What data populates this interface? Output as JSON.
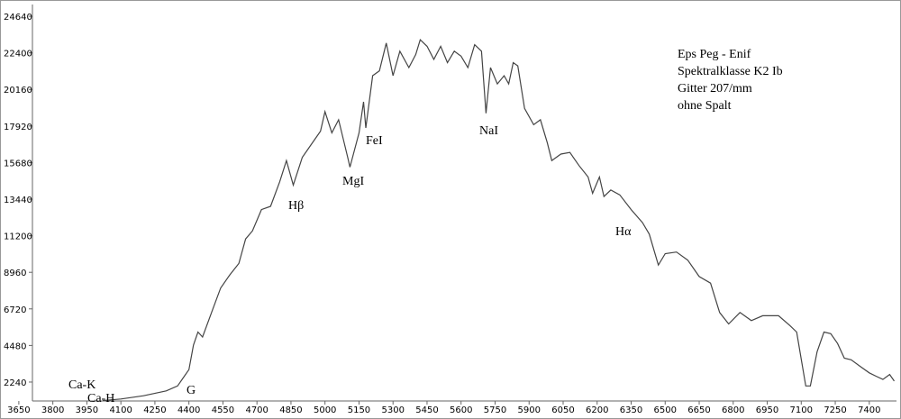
{
  "chart_data": {
    "type": "line",
    "x": [
      4020,
      4100,
      4200,
      4300,
      4350,
      4380,
      4400,
      4420,
      4440,
      4460,
      4500,
      4540,
      4580,
      4620,
      4650,
      4680,
      4720,
      4760,
      4800,
      4830,
      4860,
      4900,
      4950,
      4980,
      5000,
      5030,
      5060,
      5100,
      5110,
      5150,
      5170,
      5180,
      5210,
      5240,
      5270,
      5300,
      5330,
      5370,
      5400,
      5420,
      5450,
      5480,
      5510,
      5540,
      5570,
      5600,
      5630,
      5660,
      5690,
      5710,
      5730,
      5760,
      5790,
      5810,
      5830,
      5850,
      5880,
      5920,
      5950,
      5980,
      6000,
      6040,
      6080,
      6120,
      6160,
      6180,
      6210,
      6230,
      6260,
      6300,
      6350,
      6400,
      6430,
      6470,
      6500,
      6550,
      6600,
      6650,
      6700,
      6740,
      6780,
      6830,
      6880,
      6930,
      7000,
      7050,
      7080,
      7120,
      7140,
      7170,
      7200,
      7230,
      7260,
      7290,
      7320,
      7360,
      7400,
      7430,
      7460,
      7490,
      7510
    ],
    "series": [
      {
        "color": "#444444",
        "values": [
          1100,
          1200,
          1400,
          1700,
          2000,
          2600,
          3000,
          4500,
          5300,
          5000,
          6500,
          8000,
          8800,
          9500,
          11000,
          11500,
          12800,
          13000,
          14500,
          15800,
          14300,
          16000,
          17000,
          17600,
          18800,
          17500,
          18300,
          16000,
          15400,
          17500,
          19400,
          17800,
          21000,
          21300,
          23000,
          21000,
          22500,
          21500,
          22300,
          23200,
          22800,
          22000,
          22800,
          21800,
          22500,
          22200,
          21500,
          22900,
          22500,
          18700,
          21500,
          20500,
          21000,
          20500,
          21800,
          21600,
          19000,
          18000,
          18300,
          16900,
          15800,
          16200,
          16300,
          15500,
          14800,
          13800,
          14800,
          13600,
          14000,
          13700,
          12800,
          12000,
          11300,
          9400,
          10100,
          10200,
          9700,
          8700,
          8300,
          6500,
          5800,
          6500,
          6000,
          6300,
          6300,
          5700,
          5300,
          2000,
          2000,
          4100,
          5300,
          5200,
          4600,
          3700,
          3600,
          3200,
          2800,
          2600,
          2400,
          2700,
          2300
        ]
      }
    ],
    "xlim": [
      3710,
      7520
    ],
    "ylim": [
      1080,
      25360
    ],
    "xticks": [
      3650,
      3800,
      3950,
      4100,
      4250,
      4400,
      4550,
      4700,
      4850,
      5000,
      5150,
      5300,
      5450,
      5600,
      5750,
      5900,
      6050,
      6200,
      6350,
      6500,
      6650,
      6800,
      6950,
      7100,
      7250,
      7400
    ],
    "yticks": [
      2240,
      4480,
      6720,
      8960,
      11200,
      13440,
      15680,
      17920,
      20160,
      22400,
      24640
    ],
    "annotations": [
      "Ca-K",
      "Ca-H",
      "G",
      "Hβ",
      "MgI",
      "FeI",
      "NaI",
      "Hα"
    ],
    "info": [
      "Eps Peg - Enif",
      "Spektralklasse K2 Ib",
      "Gitter 207/mm",
      "ohne Spalt"
    ]
  }
}
